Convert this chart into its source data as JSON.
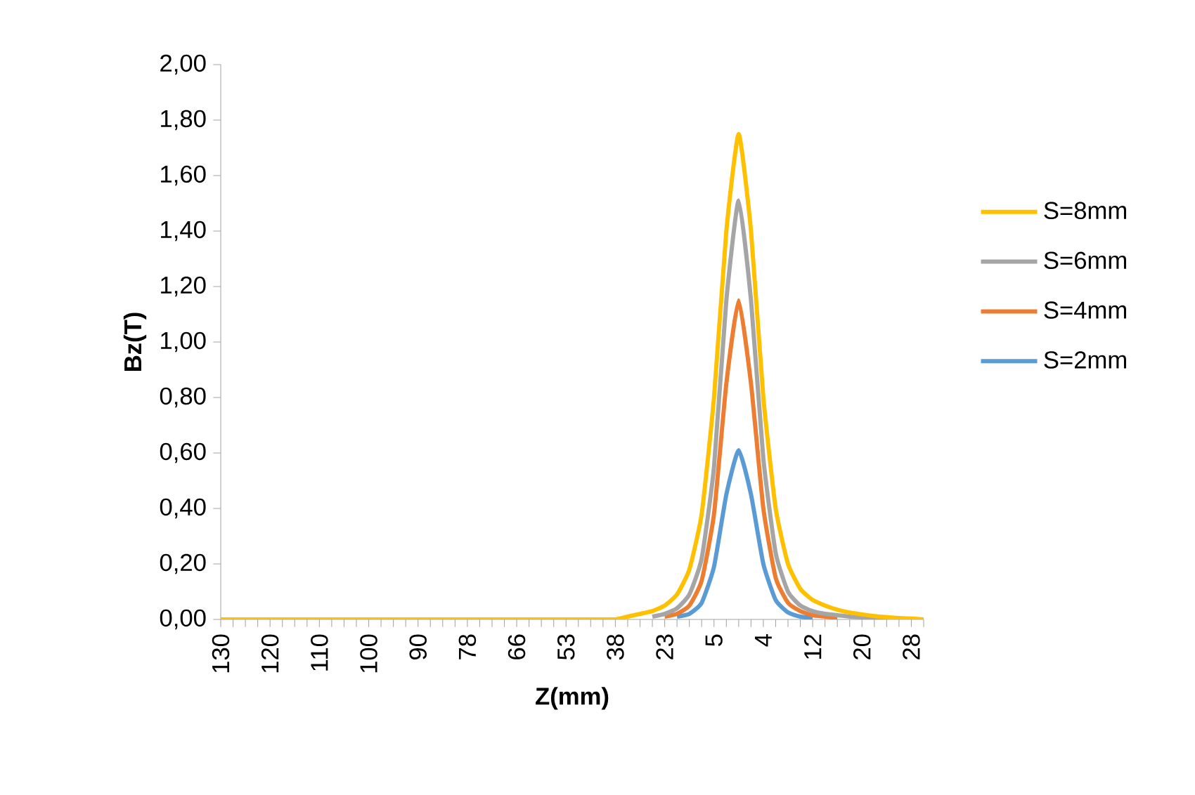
{
  "chart_data": {
    "type": "line",
    "xlabel": "Z(mm)",
    "ylabel": "Bz(T)",
    "categories": [
      "130",
      null,
      null,
      null,
      "120",
      null,
      null,
      null,
      "110",
      null,
      null,
      null,
      "100",
      null,
      null,
      null,
      "90",
      null,
      null,
      null,
      "78",
      null,
      null,
      null,
      "66",
      null,
      null,
      null,
      "53",
      null,
      null,
      null,
      "38",
      null,
      null,
      null,
      "23",
      null,
      null,
      null,
      "5",
      null,
      null,
      null,
      "4",
      null,
      null,
      null,
      "12",
      null,
      null,
      null,
      "20",
      null,
      null,
      null,
      "28",
      null
    ],
    "series": [
      {
        "name": "S=2mm",
        "color": "#5b9bd5",
        "values": [
          null,
          null,
          null,
          null,
          null,
          null,
          null,
          null,
          null,
          null,
          null,
          null,
          null,
          null,
          null,
          null,
          null,
          null,
          null,
          null,
          null,
          null,
          null,
          null,
          null,
          null,
          null,
          null,
          null,
          null,
          null,
          null,
          null,
          null,
          null,
          null,
          null,
          0.01,
          0.02,
          0.06,
          0.19,
          0.45,
          0.61,
          0.45,
          0.2,
          0.07,
          0.025,
          0.01,
          0.005,
          null,
          null,
          null,
          null,
          null,
          null,
          null,
          null,
          null
        ]
      },
      {
        "name": "S=4mm",
        "color": "#ed7d31",
        "values": [
          null,
          null,
          null,
          null,
          null,
          null,
          null,
          null,
          null,
          null,
          null,
          null,
          null,
          null,
          null,
          null,
          null,
          null,
          null,
          null,
          null,
          null,
          null,
          null,
          null,
          null,
          null,
          null,
          null,
          null,
          null,
          null,
          null,
          null,
          null,
          null,
          0.01,
          0.02,
          0.05,
          0.14,
          0.38,
          0.85,
          1.15,
          0.85,
          0.4,
          0.15,
          0.06,
          0.03,
          0.015,
          0.01,
          0.005,
          null,
          null,
          null,
          null,
          null,
          null,
          null
        ]
      },
      {
        "name": "S=6mm",
        "color": "#a5a5a5",
        "values": [
          null,
          null,
          null,
          null,
          null,
          null,
          null,
          null,
          null,
          null,
          null,
          null,
          null,
          null,
          null,
          null,
          null,
          null,
          null,
          null,
          null,
          null,
          null,
          null,
          null,
          null,
          null,
          null,
          null,
          null,
          null,
          null,
          null,
          null,
          null,
          0.01,
          0.02,
          0.04,
          0.09,
          0.22,
          0.55,
          1.15,
          1.51,
          1.15,
          0.58,
          0.24,
          0.1,
          0.05,
          0.03,
          0.02,
          0.015,
          0.01,
          0.007,
          0.005,
          0.003,
          0.002,
          0.001,
          null
        ]
      },
      {
        "name": "S=8mm",
        "color": "#ffc000",
        "values": [
          0,
          0,
          0,
          0,
          0,
          0,
          0,
          0,
          0,
          0,
          0,
          0,
          0,
          0,
          0,
          0,
          0,
          0,
          0,
          0,
          0,
          0,
          0,
          0,
          0,
          0,
          0,
          0,
          0,
          0,
          0,
          0,
          0,
          0.01,
          0.02,
          0.03,
          0.05,
          0.09,
          0.18,
          0.38,
          0.8,
          1.4,
          1.75,
          1.4,
          0.8,
          0.4,
          0.2,
          0.11,
          0.07,
          0.05,
          0.035,
          0.025,
          0.018,
          0.012,
          0.008,
          0.005,
          0.003,
          0
        ]
      }
    ],
    "ylim": [
      0,
      2
    ],
    "yticks": [
      {
        "value": 0,
        "label": "0,00"
      },
      {
        "value": 0.2,
        "label": "0,20"
      },
      {
        "value": 0.4,
        "label": "0,40"
      },
      {
        "value": 0.6,
        "label": "0,60"
      },
      {
        "value": 0.8,
        "label": "0,80"
      },
      {
        "value": 1.0,
        "label": "1,00"
      },
      {
        "value": 1.2,
        "label": "1,20"
      },
      {
        "value": 1.4,
        "label": "1,40"
      },
      {
        "value": 1.6,
        "label": "1,60"
      },
      {
        "value": 1.8,
        "label": "1,80"
      },
      {
        "value": 2.0,
        "label": "2,00"
      }
    ],
    "grid": false,
    "legend": "right",
    "marker": "none",
    "line_style": "solid"
  }
}
